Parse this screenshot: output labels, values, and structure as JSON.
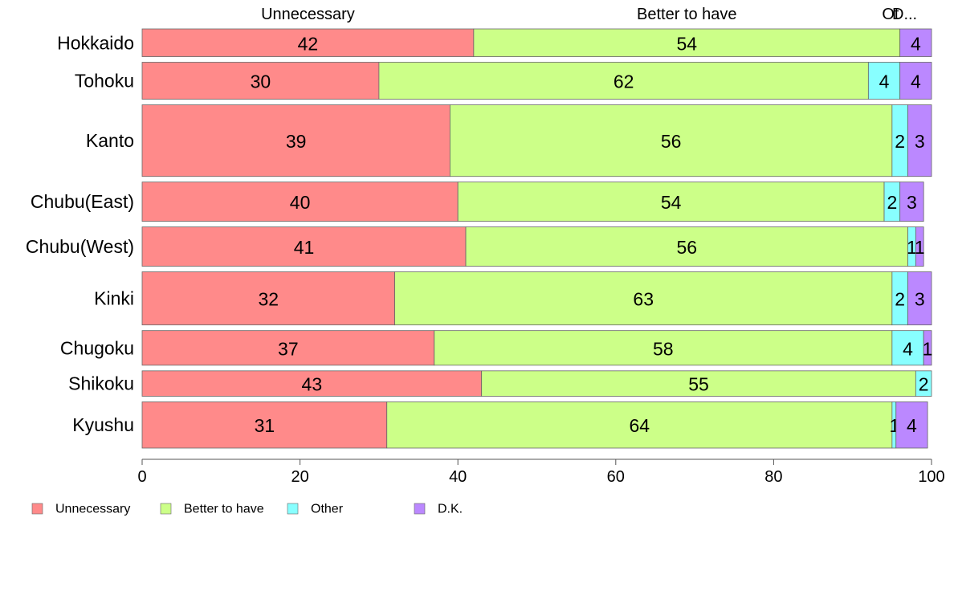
{
  "chart_data": {
    "type": "bar",
    "orientation": "horizontal",
    "stacked": true,
    "title": "",
    "xlabel": "",
    "ylabel": "",
    "xlim": [
      0,
      100
    ],
    "x_ticks": [
      0,
      20,
      40,
      60,
      80,
      100
    ],
    "grid": false,
    "legend_position": "bottom-left",
    "bar_height_mode": "variable",
    "top_labels": [
      "Unnecessary",
      "Better to have",
      "Ot",
      "D..."
    ],
    "categories": [
      "Hokkaido",
      "Tohoku",
      "Kanto",
      "Chubu(East)",
      "Chubu(West)",
      "Kinki",
      "Chugoku",
      "Shikoku",
      "Kyushu"
    ],
    "bar_weights": [
      0.6,
      0.8,
      1.55,
      0.85,
      0.85,
      1.15,
      0.75,
      0.55,
      1.0
    ],
    "series": [
      {
        "name": "Unnecessary",
        "color": "#ff8a8a",
        "values": [
          42,
          30,
          39,
          40,
          41,
          32,
          37,
          43,
          31
        ],
        "labels": [
          "42",
          "30",
          "39",
          "40",
          "41",
          "32",
          "37",
          "43",
          "31"
        ]
      },
      {
        "name": "Better to have",
        "color": "#ccff88",
        "values": [
          54,
          62,
          56,
          54,
          56,
          63,
          58,
          55,
          64
        ],
        "labels": [
          "54",
          "62",
          "56",
          "54",
          "56",
          "63",
          "58",
          "55",
          "64"
        ]
      },
      {
        "name": "Other",
        "color": "#88ffff",
        "values": [
          0,
          4,
          2,
          2,
          1,
          2,
          4,
          2,
          0.5
        ],
        "labels": [
          "",
          "4",
          "2",
          "2",
          "1",
          "2",
          "4",
          "2",
          "1"
        ]
      },
      {
        "name": "D.K.",
        "color": "#bb88ff",
        "values": [
          4,
          4,
          3,
          3,
          1,
          3,
          1,
          0,
          4
        ],
        "labels": [
          "4",
          "4",
          "3",
          "3",
          "1",
          "3",
          "1",
          "",
          "4"
        ]
      }
    ]
  }
}
